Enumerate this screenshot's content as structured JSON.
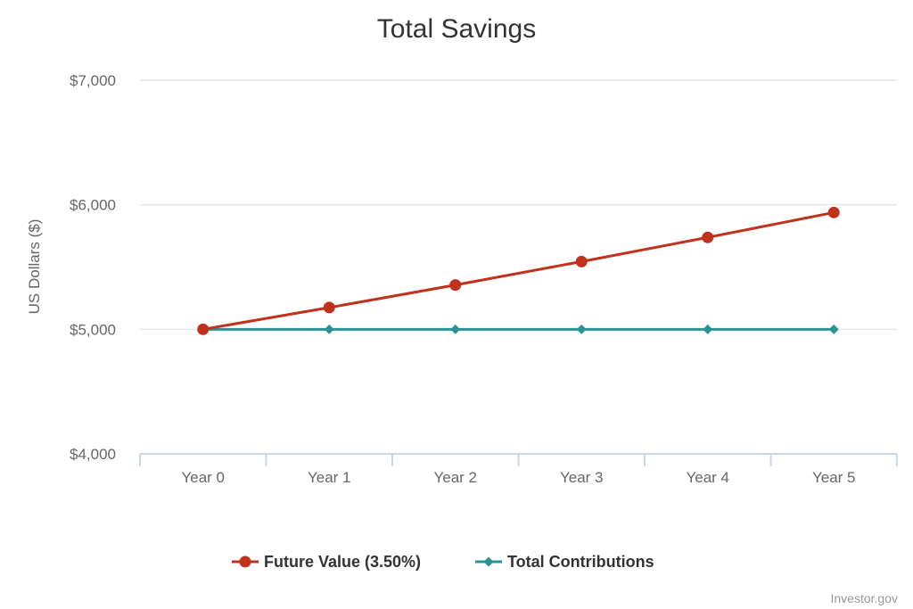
{
  "chart_data": {
    "type": "line",
    "title": "Total Savings",
    "xlabel": "",
    "ylabel": "US Dollars ($)",
    "categories": [
      "Year 0",
      "Year 1",
      "Year 2",
      "Year 3",
      "Year 4",
      "Year 5"
    ],
    "ylim": [
      4000,
      7000
    ],
    "yticks": [
      4000,
      5000,
      6000,
      7000
    ],
    "ytick_labels": [
      "$4,000",
      "$5,000",
      "$6,000",
      "$7,000"
    ],
    "grid": true,
    "legend_position": "bottom-center",
    "series": [
      {
        "name": "Future Value (3.50%)",
        "color": "#c0321c",
        "marker": "circle",
        "values": [
          5000,
          5175,
          5356,
          5544,
          5738,
          5938
        ]
      },
      {
        "name": "Total Contributions",
        "color": "#2a9494",
        "marker": "diamond",
        "values": [
          5000,
          5000,
          5000,
          5000,
          5000,
          5000
        ]
      }
    ]
  },
  "credit": "Investor.gov"
}
